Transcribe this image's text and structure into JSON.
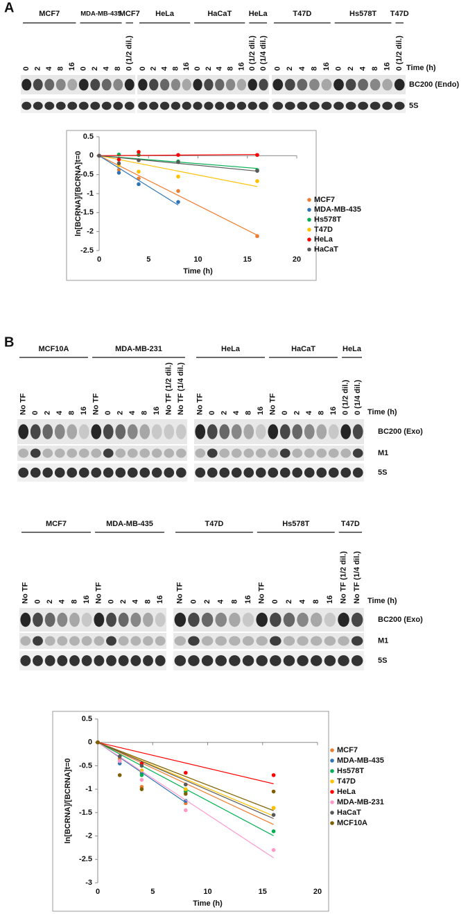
{
  "panel_a": {
    "label": "A",
    "groups": [
      {
        "name": "MCF7",
        "lanes": [
          "0",
          "2",
          "4",
          "8",
          "16"
        ]
      },
      {
        "name": "MDA-MB-435",
        "lanes": [
          "0",
          "2",
          "4",
          "8"
        ]
      },
      {
        "name": "MCF7",
        "lanes": [
          "0 (1/2 dil.)"
        ]
      },
      {
        "name": "HeLa",
        "lanes": [
          "0",
          "2",
          "4",
          "8",
          "16"
        ]
      },
      {
        "name": "HaCaT",
        "lanes": [
          "0",
          "2",
          "4",
          "8",
          "16"
        ]
      },
      {
        "name": "HeLa",
        "lanes": [
          "0 (1/2 dil.)",
          "0 (1/4 dil.)"
        ]
      },
      {
        "name": "T47D",
        "lanes": [
          "0",
          "2",
          "4",
          "8",
          "16"
        ]
      },
      {
        "name": "Hs578T",
        "lanes": [
          "0",
          "2",
          "4",
          "8",
          "16"
        ]
      },
      {
        "name": "T47D",
        "lanes": [
          "0 (1/2 dil.)"
        ]
      }
    ],
    "time_label": "Time (h)",
    "rows": [
      "BC200 (Endo)",
      "5S"
    ]
  },
  "panel_b": {
    "label": "B",
    "blots": [
      {
        "groups": [
          {
            "name": "MCF10A",
            "lanes": [
              "No TF",
              "0",
              "2",
              "4",
              "8",
              "16"
            ]
          },
          {
            "name": "MDA-MB-231",
            "lanes": [
              "No TF",
              "0",
              "2",
              "4",
              "8",
              "16",
              "No TF (1/2 dil.)",
              "No TF (1/4 dil.)"
            ]
          },
          {
            "name": "HeLa",
            "lanes": [
              "No TF",
              "0",
              "2",
              "4",
              "8",
              "16"
            ]
          },
          {
            "name": "HaCaT",
            "lanes": [
              "No TF",
              "0",
              "2",
              "4",
              "8",
              "16"
            ]
          },
          {
            "name": "HeLa",
            "lanes": [
              "0 (1/2 dil.)",
              "0 (1/4 dil.)"
            ]
          }
        ],
        "time_label": "Time (h)",
        "rows": [
          "BC200 (Exo)",
          "M1",
          "5S"
        ]
      },
      {
        "groups": [
          {
            "name": "MCF7",
            "lanes": [
              "No TF",
              "0",
              "2",
              "4",
              "8",
              "16"
            ]
          },
          {
            "name": "MDA-MB-435",
            "lanes": [
              "No TF",
              "0",
              "2",
              "4",
              "8",
              "16"
            ]
          },
          {
            "name": "T47D",
            "lanes": [
              "No TF",
              "0",
              "2",
              "4",
              "8",
              "16"
            ]
          },
          {
            "name": "Hs578T",
            "lanes": [
              "No TF",
              "0",
              "2",
              "4",
              "8",
              "16"
            ]
          },
          {
            "name": "T47D",
            "lanes": [
              "No TF (1/2 dil.)",
              "No TF (1/4 dil.)"
            ]
          }
        ],
        "time_label": "Time (h)",
        "rows": [
          "BC200 (Exo)",
          "M1",
          "5S"
        ]
      }
    ]
  },
  "chart_data": [
    {
      "type": "scatter",
      "x_label": "Time (h)",
      "y_label": "ln[BCRNA]/[BCRNA]t=0",
      "x": [
        0,
        2,
        4,
        8,
        16
      ],
      "series": [
        {
          "name": "MCF7",
          "color": "#ED7D31",
          "values": [
            0,
            -0.37,
            -0.6,
            -0.93,
            -2.12
          ]
        },
        {
          "name": "MDA-MB-435",
          "color": "#2E75B6",
          "values": [
            0,
            -0.45,
            -0.75,
            -1.22,
            null
          ]
        },
        {
          "name": "Hs578T",
          "color": "#00B050",
          "values": [
            0,
            0.03,
            0.02,
            -0.15,
            -0.38
          ]
        },
        {
          "name": "T47D",
          "color": "#FFC000",
          "values": [
            0,
            -0.25,
            -0.42,
            -0.55,
            -0.67
          ]
        },
        {
          "name": "HeLa",
          "color": "#FF0000",
          "values": [
            0,
            -0.1,
            0.1,
            0.02,
            0.02
          ]
        },
        {
          "name": "HaCaT",
          "color": "#595959",
          "values": [
            0,
            -0.2,
            -0.12,
            -0.17,
            -0.4
          ]
        }
      ],
      "xlim": [
        0,
        20
      ],
      "xticks": [
        0,
        5,
        10,
        15,
        20
      ],
      "ylim": [
        -2.5,
        0.5
      ],
      "yticks": [
        -2.5,
        -2,
        -1.5,
        -1,
        -0.5,
        0,
        0.5
      ],
      "legend": "right"
    },
    {
      "type": "scatter",
      "x_label": "Time (h)",
      "y_label": "ln[BCRNA]/[BCRNA]t=0",
      "x": [
        0,
        2,
        4,
        8,
        16
      ],
      "series": [
        {
          "name": "MCF7",
          "color": "#ED7D31",
          "values": [
            0,
            -0.35,
            -0.95,
            -1.3,
            -1.4
          ]
        },
        {
          "name": "MDA-MB-435",
          "color": "#2E75B6",
          "values": [
            0,
            -0.45,
            -0.65,
            -1.25,
            null
          ]
        },
        {
          "name": "Hs578T",
          "color": "#00B050",
          "values": [
            0,
            -0.4,
            -0.7,
            -1.05,
            -1.9
          ]
        },
        {
          "name": "T47D",
          "color": "#FFC000",
          "values": [
            0,
            -0.3,
            -0.6,
            -1.0,
            -1.4
          ]
        },
        {
          "name": "HeLa",
          "color": "#FF0000",
          "values": [
            0,
            -0.3,
            -0.45,
            -0.65,
            -0.7
          ]
        },
        {
          "name": "MDA-MB-231",
          "color": "#FF99CC",
          "values": [
            0,
            -0.4,
            -0.8,
            -1.45,
            -2.3
          ]
        },
        {
          "name": "HaCaT",
          "color": "#595959",
          "values": [
            0,
            -0.3,
            -0.5,
            -0.9,
            -1.55
          ]
        },
        {
          "name": "MCF10A",
          "color": "#7F6000",
          "values": [
            0,
            -0.7,
            -1.0,
            -1.1,
            -1.05
          ]
        }
      ],
      "xlim": [
        0,
        20
      ],
      "xticks": [
        0,
        5,
        10,
        15,
        20
      ],
      "ylim": [
        -3,
        0.5
      ],
      "yticks": [
        -3,
        -2.5,
        -2,
        -1.5,
        -1,
        -0.5,
        0,
        0.5
      ],
      "legend": "right"
    }
  ]
}
